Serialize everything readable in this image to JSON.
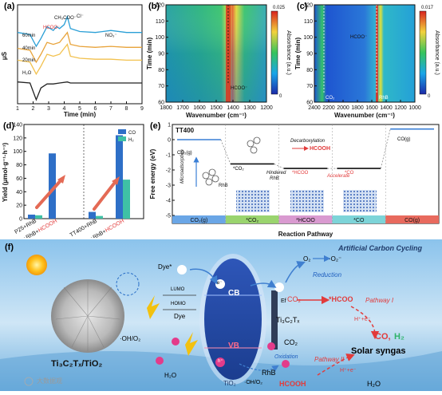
{
  "panel_a": {
    "label": "(a)",
    "ylabel": "μS",
    "xlabel": "Time (min)",
    "xticks": [
      "1",
      "2",
      "3",
      "4",
      "5",
      "6",
      "7",
      "8",
      "9"
    ],
    "traces": [
      "60min",
      "40min",
      "20min",
      "H₂O"
    ],
    "annotations": {
      "hcoo": "HCOO⁻",
      "ch3coo": "CH₃COO⁻",
      "cl": "Cl⁻",
      "no3": "NO₃⁻"
    },
    "colors": {
      "60min": "#2a9fd6",
      "40min": "#e8a33a",
      "20min": "#f2c14e",
      "H2O": "#222222"
    }
  },
  "panel_b": {
    "label": "(b)",
    "ylabel": "Time (min)",
    "xlabel": "Wavenumber (cm⁻¹)",
    "yticks": [
      "120",
      "110",
      "100",
      "90",
      "80",
      "70",
      "60"
    ],
    "xticks": [
      "1800",
      "1700",
      "1600",
      "1500",
      "1400",
      "1300",
      "1200"
    ],
    "annotation": "HCOO⁻",
    "cbar_label": "Absorbance (a.u.)",
    "cbar_max": "0.025",
    "cbar_min": "0"
  },
  "panel_c": {
    "label": "(c)",
    "ylabel": "Time (min)",
    "xlabel": "Wavenumber (cm⁻¹)",
    "yticks": [
      "120",
      "110",
      "100",
      "90",
      "80",
      "70",
      "60"
    ],
    "xticks": [
      "2400",
      "2200",
      "2000",
      "1800",
      "1600",
      "1400",
      "1200",
      "1000"
    ],
    "annotations": {
      "hcoo": "HCOO⁻",
      "co2": "CO₂",
      "rhb": "RhB"
    },
    "cbar_label": "Absorbance (a.u.)",
    "cbar_max": "0.017",
    "cbar_min": "0"
  },
  "panel_d": {
    "label": "(d)",
    "ylabel": "Yield (μmol·g⁻¹·h⁻¹)",
    "yticks": [
      "0",
      "20",
      "40",
      "60",
      "80",
      "100",
      "120",
      "140"
    ],
    "legend": [
      "CO",
      "H₂"
    ],
    "colors": {
      "CO": "#2e6fc7",
      "H2": "#3fc1a5",
      "arrow": "#e46a55"
    },
    "categories": [
      {
        "base": "P25+RhB",
        "suffix": ""
      },
      {
        "base": "P25+RhB+",
        "suffix": "HCOOH"
      },
      {
        "base": "TT400+RhB",
        "suffix": ""
      },
      {
        "base": "TT400+RhB+",
        "suffix": "HCOOH"
      }
    ]
  },
  "panel_e": {
    "label": "(e)",
    "title": "TT400",
    "ylabel": "Free energy (eV)",
    "xlabel": "Reaction Pathway",
    "yticks": [
      "1",
      "0",
      "-1",
      "-2",
      "-3",
      "-4",
      "-5"
    ],
    "states": [
      "CO₂(g)",
      "*CO₂",
      "*HCOO",
      "*CO",
      "CO(g)"
    ],
    "state_labels": [
      "CO₂(g)",
      "*CO₂",
      "*HCOO",
      "*CO",
      "CO(g)"
    ],
    "notes": {
      "micro": "Microadsorption",
      "rhb": "RhB",
      "decarb": "Decarboxylation",
      "hcooh": "HCOOH",
      "hindered": "Hindered",
      "rhb2": "RhB",
      "accel": "Accelerate"
    },
    "colors": {
      "bar0": "#6aa6e6",
      "bar1": "#9ad46e",
      "bar2": "#d99ad0",
      "bar3": "#7dd4d8",
      "bar4": "#e86a5e"
    }
  },
  "chart_data": [
    {
      "type": "line",
      "title": "",
      "xlabel": "Time (min)",
      "ylabel": "μS",
      "xlim": [
        1,
        9
      ],
      "series": [
        {
          "name": "60min",
          "x": [
            1,
            1.8,
            2.2,
            2.5,
            2.9,
            3.3,
            3.5,
            3.7,
            4.0,
            4.2,
            4.4,
            5,
            6,
            7,
            8,
            9
          ],
          "y": [
            3.6,
            3.5,
            2.9,
            3.3,
            3.9,
            3.7,
            3.9,
            3.8,
            4.0,
            4.4,
            3.8,
            3.65,
            3.6,
            3.7,
            3.6,
            3.6
          ]
        },
        {
          "name": "40min",
          "x": [
            1,
            1.8,
            2.2,
            2.5,
            2.9,
            3.3,
            3.7,
            4.2,
            4.4,
            5,
            6,
            7,
            8,
            9
          ],
          "y": [
            2.8,
            2.7,
            2.1,
            2.5,
            3.1,
            3.0,
            3.1,
            3.6,
            3.0,
            2.9,
            2.85,
            2.9,
            2.85,
            2.85
          ]
        },
        {
          "name": "20min",
          "x": [
            1,
            1.8,
            2.2,
            2.5,
            2.9,
            3.3,
            3.7,
            4.2,
            4.4,
            5,
            6,
            7,
            8,
            9
          ],
          "y": [
            2.2,
            2.1,
            1.5,
            1.9,
            2.5,
            2.4,
            2.5,
            3.0,
            2.4,
            2.3,
            2.25,
            2.25,
            2.2,
            2.2
          ]
        },
        {
          "name": "H₂O",
          "x": [
            1,
            1.8,
            2.2,
            2.5,
            2.9,
            3.3,
            3.7,
            4.2,
            4.4,
            5,
            6,
            7,
            8,
            9
          ],
          "y": [
            1.1,
            1.05,
            0.2,
            0.8,
            1.0,
            1.0,
            1.05,
            1.1,
            1.05,
            1.05,
            1.05,
            1.05,
            1.05,
            1.05
          ]
        }
      ]
    },
    {
      "type": "bar",
      "title": "",
      "ylabel": "Yield (μmol·g⁻¹·h⁻¹)",
      "ylim": [
        0,
        140
      ],
      "categories": [
        "P25+RhB",
        "P25+RhB+HCOOH",
        "TT400+RhB",
        "TT400+RhB+HCOOH"
      ],
      "series": [
        {
          "name": "CO",
          "values": [
            6,
            97,
            10,
            124
          ]
        },
        {
          "name": "H₂",
          "values": [
            5,
            0,
            4,
            58
          ]
        }
      ]
    },
    {
      "type": "line",
      "title": "TT400",
      "xlabel": "Reaction Pathway",
      "ylabel": "Free energy (eV)",
      "ylim": [
        -5,
        1
      ],
      "categories": [
        "CO₂(g)",
        "*CO₂",
        "*HCOO",
        "*CO",
        "CO(g)"
      ],
      "series": [
        {
          "name": "",
          "values": [
            0,
            -1.6,
            -1.9,
            -1.9,
            0.7
          ]
        }
      ]
    }
  ],
  "panel_f": {
    "label": "(f)",
    "title": "Artificial Carbon Cycling",
    "catalyst": "Ti₃C₂Tₓ/TiO₂",
    "dye_star": "Dye*",
    "lumo": "LUMO",
    "homo": "HOMO",
    "dye": "Dye",
    "cb": "CB",
    "vb": "VB",
    "e": "e⁻",
    "h": "h⁺",
    "tio2": "TiO₂",
    "ti3c2": "Ti₃C₂Tₓ",
    "ef": "Ef",
    "o2": "O₂",
    "o2rad": "·O₂⁻",
    "reduction": "Reduction",
    "co2a": "CO₂",
    "hcoo": "*HCOO",
    "co2b": "CO₂",
    "oxidation": "Oxidation",
    "rhb": "RhB",
    "oh": "·OH/O₂",
    "oh2": "·OH/O₂",
    "h2o": "H₂O",
    "hcooh": "HCOOH",
    "h2o_out": "H₂O",
    "co": "CO,",
    "h2": "H₂",
    "syngas": "Solar syngas",
    "path1": "Pathway I",
    "path2": "Pathway II",
    "hpe": "H⁺+e⁻",
    "hpe2": "H⁺+e⁻",
    "watermark": "大数据观"
  }
}
